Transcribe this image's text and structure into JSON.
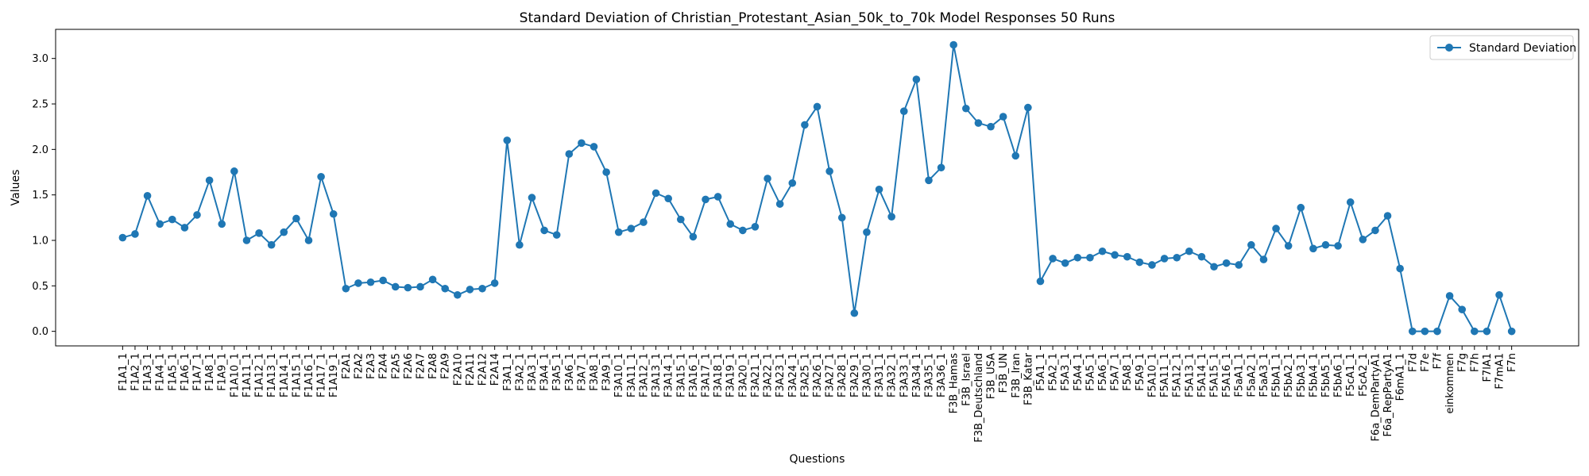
{
  "chart_data": {
    "type": "line",
    "title": "Standard Deviation of Christian_Protestant_Asian_50k_to_70k Model Responses 50 Runs",
    "xlabel": "Questions",
    "ylabel": "Values",
    "ylim": [
      -0.16,
      3.32
    ],
    "yticks": [
      0.0,
      0.5,
      1.0,
      1.5,
      2.0,
      2.5,
      3.0
    ],
    "ytick_labels": [
      "0.0",
      "0.5",
      "1.0",
      "1.5",
      "2.0",
      "2.5",
      "3.0"
    ],
    "legend_position": "top-right",
    "grid": false,
    "color": "#1f77b4",
    "categories": [
      "F1A1_1",
      "F1A2_1",
      "F1A3_1",
      "F1A4_1",
      "F1A5_1",
      "F1A6_1",
      "F1A7_1",
      "F1A8_1",
      "F1A9_1",
      "F1A10_1",
      "F1A11_1",
      "F1A12_1",
      "F1A13_1",
      "F1A14_1",
      "F1A15_1",
      "F1A16_1",
      "F1A17_1",
      "F1A19_1",
      "F2A1",
      "F2A2",
      "F2A3",
      "F2A4",
      "F2A5",
      "F2A6",
      "F2A7",
      "F2A8",
      "F2A9",
      "F2A10",
      "F2A11",
      "F2A12",
      "F2A14",
      "F3A1_1",
      "F3A2_1",
      "F3A3_1",
      "F3A4_1",
      "F3A5_1",
      "F3A6_1",
      "F3A7_1",
      "F3A8_1",
      "F3A9_1",
      "F3A10_1",
      "F3A11_1",
      "F3A12_1",
      "F3A13_1",
      "F3A14_1",
      "F3A15_1",
      "F3A16_1",
      "F3A17_1",
      "F3A18_1",
      "F3A19_1",
      "F3A20_1",
      "F3A21_1",
      "F3A22_1",
      "F3A23_1",
      "F3A24_1",
      "F3A25_1",
      "F3A26_1",
      "F3A27_1",
      "F3A28_1",
      "F3A29_1",
      "F3A30_1",
      "F3A31_1",
      "F3A32_1",
      "F3A33_1",
      "F3A34_1",
      "F3A35_1",
      "F3A36_1",
      "F3B_Hamas",
      "F3B_Israel",
      "F3B_Deutschland",
      "F3B_USA",
      "F3B_UN",
      "F3B_Iran",
      "F3B_Katar",
      "F5A1_1",
      "F5A2_1",
      "F5A3_1",
      "F5A4_1",
      "F5A5_1",
      "F5A6_1",
      "F5A7_1",
      "F5A8_1",
      "F5A9_1",
      "F5A10_1",
      "F5A11_1",
      "F5A12_1",
      "F5A13_1",
      "F5A14_1",
      "F5A15_1",
      "F5A16_1",
      "F5aA1_1",
      "F5aA2_1",
      "F5aA3_1",
      "F5bA1_1",
      "F5bA2_1",
      "F5bA3_1",
      "F5bA4_1",
      "F5bA5_1",
      "F5bA6_1",
      "F5cA1_1",
      "F5cA2_1",
      "F6a_DemPartyA1",
      "F6a_RepPartyA1",
      "F6mA1_1",
      "F7d",
      "F7e",
      "F7f",
      "einkommen",
      "F7g",
      "F7h",
      "F7lA1",
      "F7mA1",
      "F7n"
    ],
    "series": [
      {
        "name": "Standard Deviation",
        "values": [
          1.03,
          1.07,
          1.49,
          1.18,
          1.23,
          1.14,
          1.28,
          1.66,
          1.18,
          1.76,
          1.0,
          1.08,
          0.95,
          1.09,
          1.24,
          1.0,
          1.7,
          1.29,
          0.47,
          0.53,
          0.54,
          0.56,
          0.49,
          0.48,
          0.49,
          0.57,
          0.47,
          0.4,
          0.46,
          0.47,
          0.53,
          2.1,
          0.95,
          1.47,
          1.11,
          1.06,
          1.95,
          2.07,
          2.03,
          1.75,
          1.09,
          1.13,
          1.2,
          1.52,
          1.46,
          1.23,
          1.04,
          1.45,
          1.48,
          1.18,
          1.11,
          1.15,
          1.68,
          1.4,
          1.63,
          2.27,
          2.47,
          1.76,
          1.25,
          0.2,
          1.09,
          1.56,
          1.26,
          2.42,
          2.77,
          1.66,
          1.8,
          3.15,
          2.45,
          2.29,
          2.25,
          2.36,
          1.93,
          2.46,
          0.55,
          0.8,
          0.75,
          0.81,
          0.81,
          0.88,
          0.84,
          0.82,
          0.76,
          0.73,
          0.8,
          0.81,
          0.88,
          0.82,
          0.71,
          0.75,
          0.73,
          0.95,
          0.79,
          1.13,
          0.94,
          1.36,
          0.91,
          0.95,
          0.94,
          1.42,
          1.01,
          1.11,
          1.27,
          0.69,
          0.0,
          0.0,
          0.0,
          0.39,
          0.24,
          0.0,
          0.0,
          0.4,
          0.0
        ]
      }
    ]
  }
}
